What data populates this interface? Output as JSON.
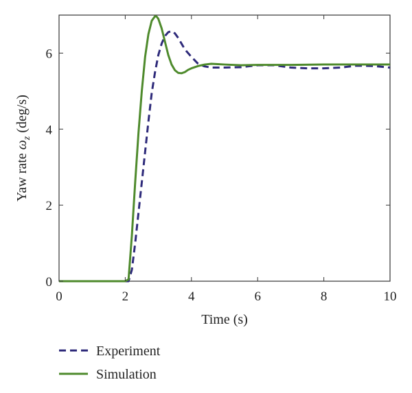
{
  "chart_data": {
    "type": "line",
    "title": "",
    "xlabel": "Time (s)",
    "ylabel_prefix": "Yaw rate ",
    "ylabel_symbol": "ω",
    "ylabel_subscript": "z",
    "ylabel_suffix": " (deg/s)",
    "xlim": [
      0,
      10
    ],
    "ylim": [
      0,
      7
    ],
    "xticks": [
      0,
      2,
      4,
      6,
      8,
      10
    ],
    "yticks": [
      0,
      2,
      4,
      6
    ],
    "grid": false,
    "legend_position": "bottom-left-outside",
    "series": [
      {
        "name": "Experiment",
        "color": "#2e2a7a",
        "style": "dashed",
        "x": [
          0,
          2.0,
          2.1,
          2.2,
          2.3,
          2.4,
          2.5,
          2.6,
          2.7,
          2.8,
          2.9,
          3.0,
          3.1,
          3.2,
          3.3,
          3.4,
          3.5,
          3.6,
          3.7,
          3.8,
          4.0,
          4.2,
          4.4,
          4.6,
          5.0,
          5.5,
          6.0,
          6.5,
          7.0,
          7.5,
          8.0,
          8.5,
          9.0,
          9.5,
          10.0
        ],
        "y": [
          0,
          0,
          0,
          0.3,
          1.0,
          1.8,
          2.6,
          3.4,
          4.2,
          4.95,
          5.5,
          5.95,
          6.25,
          6.45,
          6.55,
          6.58,
          6.52,
          6.4,
          6.25,
          6.1,
          5.9,
          5.72,
          5.65,
          5.62,
          5.62,
          5.63,
          5.68,
          5.68,
          5.62,
          5.6,
          5.6,
          5.62,
          5.67,
          5.66,
          5.62
        ]
      },
      {
        "name": "Simulation",
        "color": "#4e8a2c",
        "style": "solid",
        "x": [
          0,
          2.0,
          2.1,
          2.2,
          2.3,
          2.4,
          2.5,
          2.6,
          2.7,
          2.8,
          2.9,
          2.95,
          3.0,
          3.1,
          3.2,
          3.3,
          3.4,
          3.5,
          3.6,
          3.7,
          3.8,
          3.9,
          4.0,
          4.2,
          4.4,
          4.6,
          4.8,
          5.0,
          5.5,
          6.0,
          7.0,
          8.0,
          9.0,
          10.0
        ],
        "y": [
          0,
          0,
          0.05,
          1.2,
          2.6,
          3.9,
          5.0,
          5.9,
          6.5,
          6.85,
          6.97,
          6.96,
          6.9,
          6.65,
          6.3,
          5.95,
          5.7,
          5.55,
          5.48,
          5.47,
          5.5,
          5.56,
          5.6,
          5.66,
          5.7,
          5.72,
          5.71,
          5.7,
          5.68,
          5.69,
          5.69,
          5.7,
          5.7,
          5.7
        ]
      }
    ]
  }
}
